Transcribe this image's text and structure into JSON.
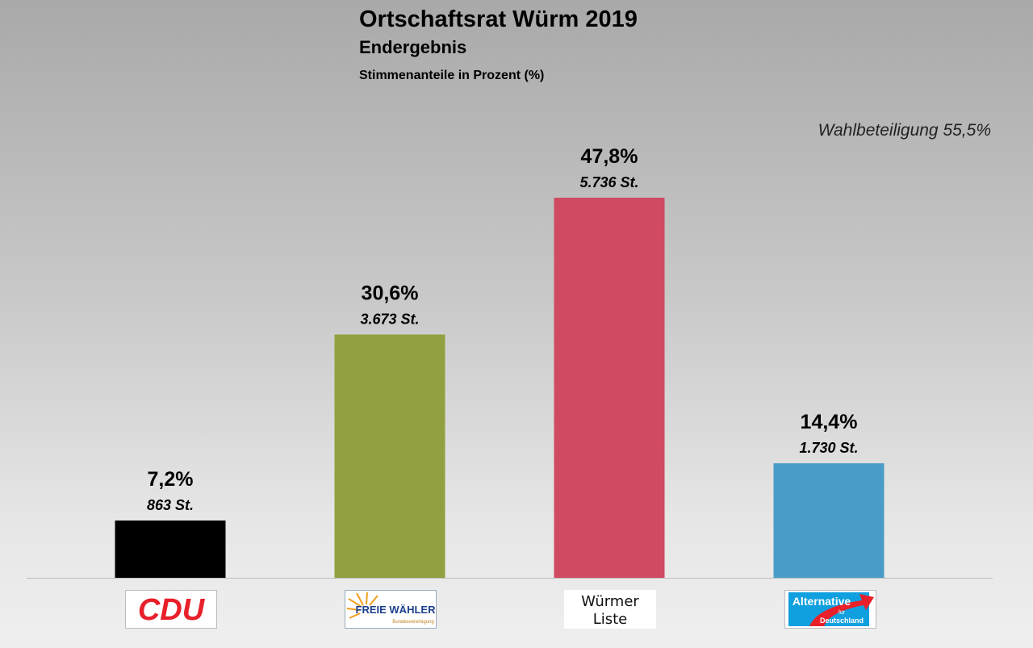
{
  "chart_data": {
    "type": "bar",
    "title": "Ortschaftsrat Würm 2019",
    "subtitle": "Endergebnis",
    "ylabel": "Stimmenanteile in Prozent (%)",
    "annotation": "Wahlbeteiligung 55,5%",
    "categories": [
      "CDU",
      "FREIE WÄHLER",
      "Würmer Liste",
      "Alternative für Deutschland"
    ],
    "values": [
      7.2,
      30.6,
      47.8,
      14.4
    ],
    "value_labels": [
      "7,2%",
      "30,6%",
      "47,8%",
      "14,4%"
    ],
    "votes": [
      863,
      3673,
      5736,
      1730
    ],
    "vote_labels": [
      "863 St.",
      "3.673 St.",
      "5.736 St.",
      "1.730 St."
    ],
    "colors": [
      "#000000",
      "#92a040",
      "#d04a62",
      "#4a9cc8"
    ],
    "ylim": [
      0,
      50
    ],
    "grid": false,
    "legend": "none"
  },
  "logos": {
    "cdu": "CDU",
    "fw": {
      "main": "FREIE WÄHLER",
      "sub": "Bundesvereinigung"
    },
    "wl": {
      "line1": "Würmer",
      "line2": "Liste"
    },
    "afd": {
      "line1": "Alternative",
      "line2": "für",
      "line3": "Deutschland"
    }
  }
}
